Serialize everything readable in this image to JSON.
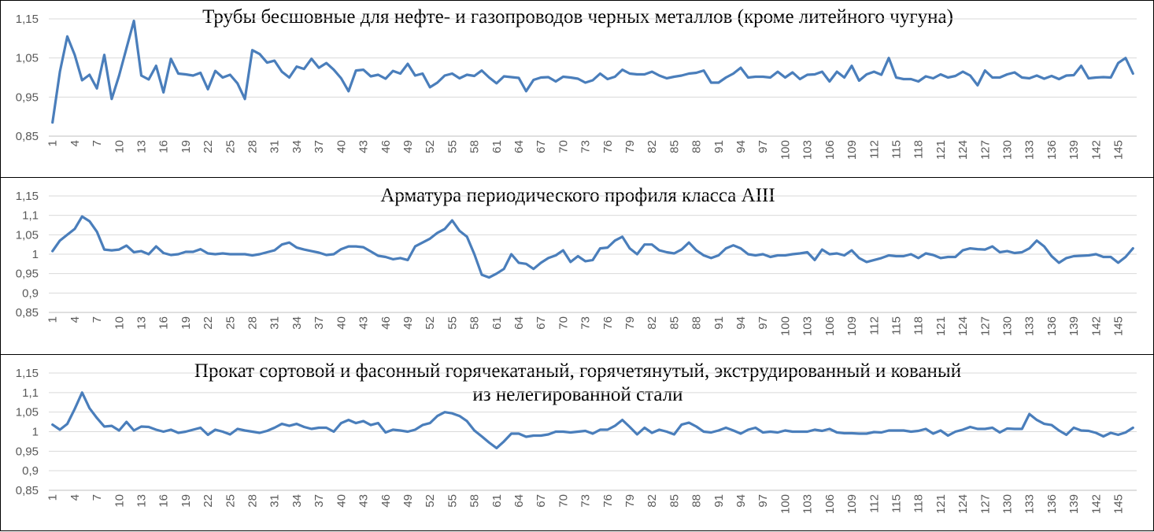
{
  "colors": {
    "series": "#4a7ebb",
    "grid": "#d9d9d9",
    "text": "#595959"
  },
  "chart_data": [
    {
      "type": "line",
      "title": "Трубы бесшовные для нефте- и газопроводов черных металлов (кроме литейного чугуна)",
      "title_lines": [
        "Трубы бесшовные для нефте- и газопроводов черных металлов (кроме литейного чугуна)"
      ],
      "xlabel": "",
      "ylabel": "",
      "ylim": [
        0.85,
        1.15
      ],
      "yticks": [
        0.85,
        0.95,
        1.05,
        1.15
      ],
      "ytick_labels": [
        "0,85",
        "0,95",
        "1,05",
        "1,15"
      ],
      "x": [
        1,
        2,
        3,
        4,
        5,
        6,
        7,
        8,
        9,
        10,
        11,
        12,
        13,
        14,
        15,
        16,
        17,
        18,
        19,
        20,
        21,
        22,
        23,
        24,
        25,
        26,
        27,
        28,
        29,
        30,
        31,
        32,
        33,
        34,
        35,
        36,
        37,
        38,
        39,
        40,
        41,
        42,
        43,
        44,
        45,
        46,
        47,
        48,
        49,
        50,
        51,
        52,
        53,
        54,
        55,
        56,
        57,
        58,
        59,
        60,
        61,
        62,
        63,
        64,
        65,
        66,
        67,
        68,
        69,
        70,
        71,
        72,
        73,
        74,
        75,
        76,
        77,
        78,
        79,
        80,
        81,
        82,
        83,
        84,
        85,
        86,
        87,
        88,
        89,
        90,
        91,
        92,
        93,
        94,
        95,
        96,
        97,
        98,
        99,
        100,
        101,
        102,
        103,
        104,
        105,
        106,
        107,
        108,
        109,
        110,
        111,
        112,
        113,
        114,
        115,
        116,
        117,
        118,
        119,
        120,
        121,
        122,
        123,
        124,
        125,
        126,
        127,
        128,
        129,
        130,
        131,
        132,
        133,
        134,
        135,
        136,
        137,
        138,
        139,
        140,
        141,
        142,
        143,
        144,
        145,
        146,
        147
      ],
      "xtick_labels": [
        "1",
        "4",
        "7",
        "10",
        "13",
        "16",
        "19",
        "22",
        "25",
        "28",
        "31",
        "34",
        "37",
        "40",
        "43",
        "46",
        "49",
        "52",
        "55",
        "58",
        "61",
        "64",
        "67",
        "70",
        "73",
        "76",
        "79",
        "82",
        "85",
        "88",
        "91",
        "94",
        "97",
        "100",
        "103",
        "106",
        "109",
        "112",
        "115",
        "118",
        "121",
        "124",
        "127",
        "130",
        "133",
        "136",
        "139",
        "142",
        "145"
      ],
      "grid": true,
      "series": [
        {
          "values": [
            0.885,
            1.015,
            1.105,
            1.058,
            0.993,
            1.007,
            0.972,
            1.058,
            0.945,
            1.005,
            1.075,
            1.145,
            1.005,
            0.995,
            1.03,
            0.962,
            1.048,
            1.01,
            1.008,
            1.005,
            1.012,
            0.97,
            1.017,
            1.0,
            1.007,
            0.985,
            0.945,
            1.07,
            1.06,
            1.038,
            1.043,
            1.015,
            1.0,
            1.028,
            1.022,
            1.048,
            1.025,
            1.037,
            1.02,
            0.998,
            0.965,
            1.018,
            1.02,
            1.003,
            1.007,
            0.997,
            1.017,
            1.01,
            1.035,
            1.005,
            1.01,
            0.975,
            0.987,
            1.005,
            1.01,
            0.998,
            1.007,
            1.004,
            1.018,
            1.0,
            0.985,
            1.003,
            1.001,
            0.999,
            0.965,
            0.994,
            1.0,
            1.001,
            0.99,
            1.002,
            1.0,
            0.997,
            0.987,
            0.993,
            1.01,
            0.996,
            1.002,
            1.02,
            1.01,
            1.008,
            1.008,
            1.015,
            1.005,
            0.998,
            1.002,
            1.005,
            1.01,
            1.012,
            1.018,
            0.987,
            0.987,
            1.0,
            1.01,
            1.025,
            1.0,
            1.002,
            1.002,
            1.0,
            1.015,
            1.0,
            1.013,
            0.996,
            1.007,
            1.008,
            1.015,
            0.99,
            1.015,
            1.0,
            1.03,
            0.992,
            1.008,
            1.015,
            1.007,
            1.05,
            1.0,
            0.996,
            0.996,
            0.99,
            1.003,
            0.998,
            1.008,
            1.0,
            1.004,
            1.015,
            1.005,
            0.98,
            1.018,
            1.0,
            1.0,
            1.008,
            1.013,
            1.0,
            0.998,
            1.005,
            0.997,
            1.004,
            0.996,
            1.005,
            1.006,
            1.03,
            0.998,
            1.0,
            1.001,
            1.0,
            1.037,
            1.05,
            1.01
          ]
        }
      ]
    },
    {
      "type": "line",
      "title": "Арматура периодического профиля класса АIII",
      "title_lines": [
        "Арматура периодического профиля класса АIII"
      ],
      "xlabel": "",
      "ylabel": "",
      "ylim": [
        0.85,
        1.15
      ],
      "yticks": [
        0.85,
        0.9,
        0.95,
        1.0,
        1.05,
        1.1,
        1.15
      ],
      "ytick_labels": [
        "0,85",
        "0,9",
        "0,95",
        "1",
        "1,05",
        "1,1",
        "1,15"
      ],
      "x": [
        1,
        2,
        3,
        4,
        5,
        6,
        7,
        8,
        9,
        10,
        11,
        12,
        13,
        14,
        15,
        16,
        17,
        18,
        19,
        20,
        21,
        22,
        23,
        24,
        25,
        26,
        27,
        28,
        29,
        30,
        31,
        32,
        33,
        34,
        35,
        36,
        37,
        38,
        39,
        40,
        41,
        42,
        43,
        44,
        45,
        46,
        47,
        48,
        49,
        50,
        51,
        52,
        53,
        54,
        55,
        56,
        57,
        58,
        59,
        60,
        61,
        62,
        63,
        64,
        65,
        66,
        67,
        68,
        69,
        70,
        71,
        72,
        73,
        74,
        75,
        76,
        77,
        78,
        79,
        80,
        81,
        82,
        83,
        84,
        85,
        86,
        87,
        88,
        89,
        90,
        91,
        92,
        93,
        94,
        95,
        96,
        97,
        98,
        99,
        100,
        101,
        102,
        103,
        104,
        105,
        106,
        107,
        108,
        109,
        110,
        111,
        112,
        113,
        114,
        115,
        116,
        117,
        118,
        119,
        120,
        121,
        122,
        123,
        124,
        125,
        126,
        127,
        128,
        129,
        130,
        131,
        132,
        133,
        134,
        135,
        136,
        137,
        138,
        139,
        140,
        141,
        142,
        143,
        144,
        145,
        146,
        147
      ],
      "xtick_labels": [
        "1",
        "4",
        "7",
        "10",
        "13",
        "16",
        "19",
        "22",
        "25",
        "28",
        "31",
        "34",
        "37",
        "40",
        "43",
        "46",
        "49",
        "52",
        "55",
        "58",
        "61",
        "64",
        "67",
        "70",
        "73",
        "76",
        "79",
        "82",
        "85",
        "88",
        "91",
        "94",
        "97",
        "100",
        "103",
        "106",
        "109",
        "112",
        "115",
        "118",
        "121",
        "124",
        "127",
        "130",
        "133",
        "136",
        "139",
        "142",
        "145"
      ],
      "grid": true,
      "series": [
        {
          "values": [
            1.008,
            1.035,
            1.05,
            1.065,
            1.097,
            1.085,
            1.058,
            1.012,
            1.01,
            1.012,
            1.022,
            1.005,
            1.008,
            1.0,
            1.02,
            1.003,
            0.998,
            1.0,
            1.006,
            1.006,
            1.013,
            1.002,
            1.0,
            1.002,
            1.0,
            1.0,
            1.0,
            0.997,
            1.0,
            1.005,
            1.01,
            1.025,
            1.03,
            1.017,
            1.012,
            1.008,
            1.004,
            0.998,
            1.0,
            1.013,
            1.02,
            1.02,
            1.018,
            1.007,
            0.996,
            0.993,
            0.987,
            0.99,
            0.985,
            1.02,
            1.03,
            1.04,
            1.055,
            1.065,
            1.087,
            1.06,
            1.045,
            1.0,
            0.947,
            0.94,
            0.95,
            0.962,
            1.0,
            0.978,
            0.975,
            0.962,
            0.978,
            0.99,
            0.997,
            1.01,
            0.98,
            0.995,
            0.982,
            0.985,
            1.015,
            1.017,
            1.035,
            1.045,
            1.015,
            1.0,
            1.025,
            1.025,
            1.01,
            1.005,
            1.002,
            1.012,
            1.03,
            1.01,
            0.997,
            0.99,
            0.997,
            1.015,
            1.023,
            1.015,
            1.0,
            0.997,
            1.0,
            0.993,
            0.997,
            0.997,
            1.0,
            1.002,
            1.005,
            0.985,
            1.012,
            1.0,
            1.002,
            0.997,
            1.01,
            0.99,
            0.98,
            0.985,
            0.99,
            0.997,
            0.995,
            0.995,
            1.0,
            0.99,
            1.002,
            0.998,
            0.99,
            0.993,
            0.993,
            1.01,
            1.015,
            1.013,
            1.012,
            1.02,
            1.005,
            1.008,
            1.003,
            1.005,
            1.015,
            1.035,
            1.02,
            0.995,
            0.978,
            0.99,
            0.995,
            0.996,
            0.997,
            1.0,
            0.993,
            0.993,
            0.978,
            0.993,
            1.015
          ]
        }
      ]
    },
    {
      "type": "line",
      "title": "Прокат сортовой и фасонный горячекатаный, горячетянутый, экструдированный и кованый из нелегированной стали",
      "title_lines": [
        "Прокат сортовой и фасонный горячекатаный, горячетянутый, экструдированный и кованый",
        "из нелегированной стали"
      ],
      "xlabel": "",
      "ylabel": "",
      "ylim": [
        0.85,
        1.15
      ],
      "yticks": [
        0.85,
        0.9,
        0.95,
        1.0,
        1.05,
        1.1,
        1.15
      ],
      "ytick_labels": [
        "0,85",
        "0,9",
        "0,95",
        "1",
        "1,05",
        "1,1",
        "1,15"
      ],
      "x": [
        1,
        2,
        3,
        4,
        5,
        6,
        7,
        8,
        9,
        10,
        11,
        12,
        13,
        14,
        15,
        16,
        17,
        18,
        19,
        20,
        21,
        22,
        23,
        24,
        25,
        26,
        27,
        28,
        29,
        30,
        31,
        32,
        33,
        34,
        35,
        36,
        37,
        38,
        39,
        40,
        41,
        42,
        43,
        44,
        45,
        46,
        47,
        48,
        49,
        50,
        51,
        52,
        53,
        54,
        55,
        56,
        57,
        58,
        59,
        60,
        61,
        62,
        63,
        64,
        65,
        66,
        67,
        68,
        69,
        70,
        71,
        72,
        73,
        74,
        75,
        76,
        77,
        78,
        79,
        80,
        81,
        82,
        83,
        84,
        85,
        86,
        87,
        88,
        89,
        90,
        91,
        92,
        93,
        94,
        95,
        96,
        97,
        98,
        99,
        100,
        101,
        102,
        103,
        104,
        105,
        106,
        107,
        108,
        109,
        110,
        111,
        112,
        113,
        114,
        115,
        116,
        117,
        118,
        119,
        120,
        121,
        122,
        123,
        124,
        125,
        126,
        127,
        128,
        129,
        130,
        131,
        132,
        133,
        134,
        135,
        136,
        137,
        138,
        139,
        140,
        141,
        142,
        143,
        144,
        145,
        146,
        147
      ],
      "xtick_labels": [
        "1",
        "4",
        "7",
        "10",
        "13",
        "16",
        "19",
        "22",
        "25",
        "28",
        "31",
        "34",
        "37",
        "40",
        "43",
        "46",
        "49",
        "52",
        "55",
        "58",
        "61",
        "64",
        "67",
        "70",
        "73",
        "76",
        "79",
        "82",
        "85",
        "88",
        "91",
        "94",
        "97",
        "100",
        "103",
        "106",
        "109",
        "112",
        "115",
        "118",
        "121",
        "124",
        "127",
        "130",
        "133",
        "136",
        "139",
        "142",
        "145"
      ],
      "grid": true,
      "series": [
        {
          "values": [
            1.018,
            1.005,
            1.02,
            1.058,
            1.1,
            1.06,
            1.035,
            1.013,
            1.015,
            1.003,
            1.025,
            1.003,
            1.013,
            1.012,
            1.005,
            1.0,
            1.005,
            0.997,
            1.0,
            1.005,
            1.01,
            0.992,
            1.005,
            1.0,
            0.993,
            1.007,
            1.003,
            1.0,
            0.997,
            1.002,
            1.01,
            1.02,
            1.015,
            1.02,
            1.012,
            1.007,
            1.01,
            1.01,
            1.0,
            1.022,
            1.03,
            1.022,
            1.027,
            1.017,
            1.022,
            0.998,
            1.005,
            1.003,
            1.0,
            1.005,
            1.017,
            1.022,
            1.04,
            1.05,
            1.047,
            1.04,
            1.027,
            1.003,
            0.988,
            0.972,
            0.958,
            0.975,
            0.995,
            0.995,
            0.987,
            0.99,
            0.99,
            0.993,
            1.0,
            1.0,
            0.998,
            1.0,
            1.002,
            0.995,
            1.005,
            1.005,
            1.015,
            1.03,
            1.012,
            0.993,
            1.01,
            0.997,
            1.005,
            1.0,
            0.993,
            1.018,
            1.023,
            1.013,
            1.0,
            0.998,
            1.003,
            1.01,
            1.003,
            0.995,
            1.005,
            1.01,
            0.998,
            1.0,
            0.998,
            1.003,
            1.0,
            1.0,
            1.0,
            1.005,
            1.002,
            1.007,
            0.998,
            0.996,
            0.996,
            0.995,
            0.995,
            0.999,
            0.998,
            1.003,
            1.003,
            1.003,
            1.0,
            1.002,
            1.007,
            0.995,
            1.003,
            0.99,
            1.0,
            1.005,
            1.012,
            1.007,
            1.007,
            1.01,
            0.998,
            1.008,
            1.007,
            1.007,
            1.045,
            1.03,
            1.02,
            1.017,
            1.003,
            0.992,
            1.01,
            1.003,
            1.002,
            0.997,
            0.988,
            0.997,
            0.992,
            0.998,
            1.01
          ]
        }
      ]
    }
  ]
}
